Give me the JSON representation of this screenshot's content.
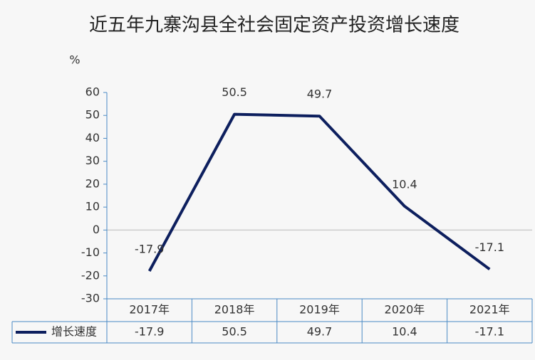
{
  "chart_data": {
    "type": "line",
    "title": "近五年九寨沟县全社会固定资产投资增长速度",
    "y_label": "%",
    "categories": [
      "2017年",
      "2018年",
      "2019年",
      "2020年",
      "2021年"
    ],
    "series": [
      {
        "name": "增长速度",
        "color": "#0d1f5e",
        "values": [
          -17.9,
          50.5,
          49.7,
          10.4,
          -17.1
        ]
      }
    ],
    "ylim": [
      -30,
      60
    ],
    "yticks": [
      -30,
      -20,
      -10,
      0,
      10,
      20,
      30,
      40,
      50,
      60
    ],
    "data_table": true
  }
}
